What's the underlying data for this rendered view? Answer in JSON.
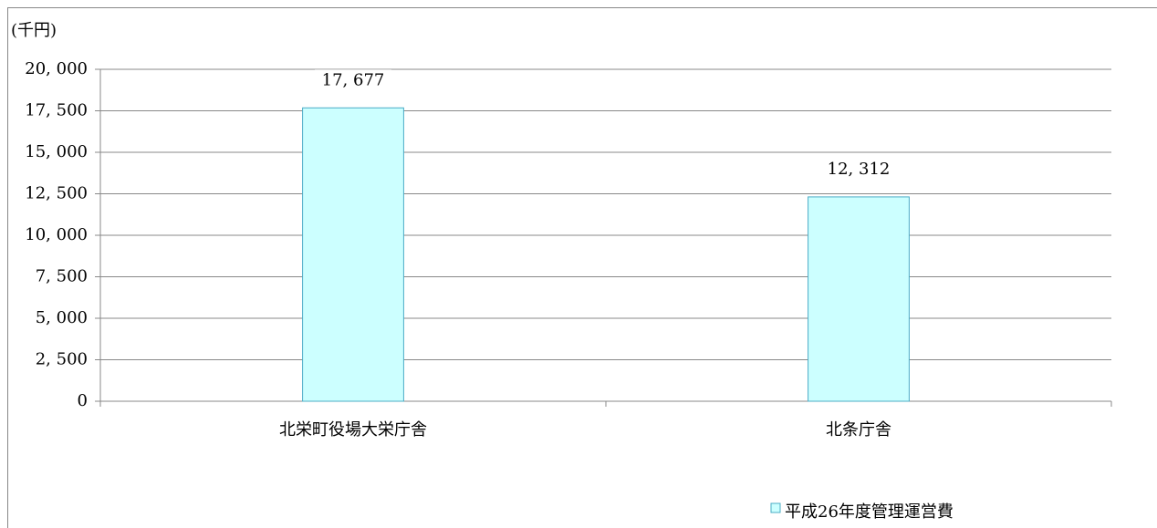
{
  "chart_data": {
    "type": "bar",
    "ylabel": "(千円)",
    "categories": [
      "北栄町役場大栄庁舎",
      "北条庁舎"
    ],
    "series": [
      {
        "name": "平成26年度管理運営費",
        "color": "#ccffff",
        "edge": "#4bacc6",
        "values": [
          17677,
          12312
        ],
        "value_labels": [
          "17, 677",
          "12, 312"
        ]
      }
    ],
    "ylim": [
      0,
      20000
    ],
    "yticks": [
      0,
      {
        "value": 2500,
        "label": "2, 500"
      },
      {
        "value": 5000,
        "label": "5, 000"
      },
      {
        "value": 7500,
        "label": "7, 500"
      },
      {
        "value": 10000,
        "label": "10, 000"
      },
      {
        "value": 12500,
        "label": "12, 500"
      },
      {
        "value": 15000,
        "label": "15, 000"
      },
      {
        "value": 17500,
        "label": "17, 500"
      },
      {
        "value": 20000,
        "label": "20, 000"
      }
    ],
    "grid": true,
    "legend": "bottom-right"
  }
}
